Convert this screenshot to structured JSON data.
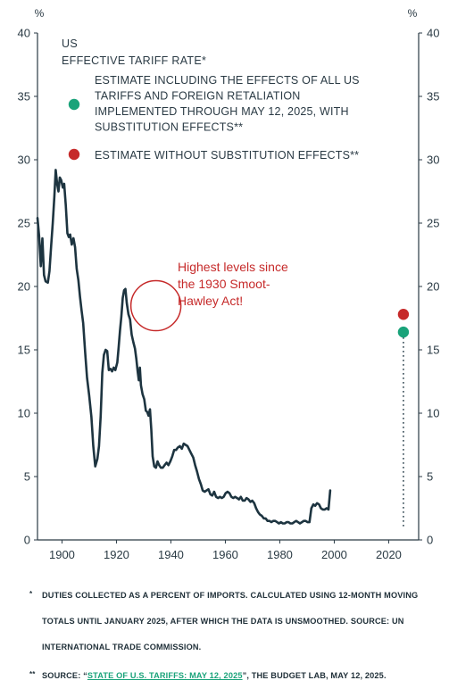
{
  "chart_data": {
    "type": "line",
    "title": "US\nEFFECTIVE TARIFF RATE*",
    "title_lines": [
      "US",
      "EFFECTIVE TARIFF RATE*"
    ],
    "y_unit_label": "%",
    "xlim": [
      1891,
      2031
    ],
    "ylim": [
      0,
      40
    ],
    "x_ticks": [
      "1900",
      "1920",
      "1940",
      "1960",
      "1980",
      "2000",
      "2020"
    ],
    "x_tick_values": [
      1900,
      1920,
      1940,
      1960,
      1980,
      2000,
      2020
    ],
    "y_ticks": [
      "0",
      "5",
      "10",
      "15",
      "20",
      "25",
      "30",
      "35",
      "40"
    ],
    "y_tick_values": [
      0,
      5,
      10,
      15,
      20,
      25,
      30,
      35,
      40
    ],
    "legend": [
      {
        "label_lines": [
          "ESTIMATE INCLUDING THE EFFECTS OF ALL US",
          "TARIFFS AND FOREIGN RETALIATION",
          "IMPLEMENTED THROUGH MAY 12, 2025, WITH",
          "SUBSTITUTION EFFECTS**"
        ],
        "color": "#1aa37a"
      },
      {
        "label_lines": [
          "ESTIMATE WITHOUT SUBSTITUTION EFFECTS**"
        ],
        "color": "#c62a2a"
      }
    ],
    "annotation": {
      "text_lines": [
        "Highest levels since",
        "the 1930 Smoot-",
        "Hawley Act!"
      ],
      "x": 1933.5,
      "y": 18.2,
      "color": "#c62a2a"
    },
    "series": [
      {
        "color": "#1d3440",
        "points": [
          [
            1891,
            25.4
          ],
          [
            1891.6,
            24.0
          ],
          [
            1892.2,
            21.6
          ],
          [
            1892.8,
            23.8
          ],
          [
            1893.4,
            20.9
          ],
          [
            1894.0,
            20.4
          ],
          [
            1894.8,
            20.3
          ],
          [
            1895.4,
            21.2
          ],
          [
            1896.0,
            23.2
          ],
          [
            1896.6,
            25.0
          ],
          [
            1897.2,
            27.1
          ],
          [
            1897.7,
            29.2
          ],
          [
            1898.2,
            28.1
          ],
          [
            1898.7,
            27.5
          ],
          [
            1899.2,
            28.6
          ],
          [
            1899.7,
            28.4
          ],
          [
            1900.3,
            27.8
          ],
          [
            1900.8,
            28.1
          ],
          [
            1901.4,
            26.4
          ],
          [
            1902.0,
            24.2
          ],
          [
            1902.5,
            23.9
          ],
          [
            1903.0,
            24.1
          ],
          [
            1903.6,
            23.3
          ],
          [
            1904.2,
            23.8
          ],
          [
            1904.8,
            23.1
          ],
          [
            1905.4,
            21.4
          ],
          [
            1906.0,
            20.5
          ],
          [
            1906.6,
            19.2
          ],
          [
            1907.2,
            18.1
          ],
          [
            1907.8,
            17.1
          ],
          [
            1908.5,
            14.8
          ],
          [
            1909.2,
            12.8
          ],
          [
            1910.0,
            11.4
          ],
          [
            1910.8,
            9.7
          ],
          [
            1911.5,
            7.4
          ],
          [
            1912.2,
            5.8
          ],
          [
            1913.0,
            6.4
          ],
          [
            1913.6,
            7.4
          ],
          [
            1914.2,
            9.8
          ],
          [
            1914.8,
            13.2
          ],
          [
            1915.4,
            14.6
          ],
          [
            1916.0,
            15.0
          ],
          [
            1916.6,
            14.9
          ],
          [
            1917.2,
            13.4
          ],
          [
            1917.8,
            13.5
          ],
          [
            1918.4,
            13.3
          ],
          [
            1919.0,
            13.6
          ],
          [
            1919.6,
            13.4
          ],
          [
            1920.3,
            14.0
          ],
          [
            1920.8,
            15.2
          ],
          [
            1921.3,
            16.5
          ],
          [
            1921.8,
            17.6
          ],
          [
            1922.3,
            19.1
          ],
          [
            1922.8,
            19.7
          ],
          [
            1923.3,
            19.8
          ],
          [
            1923.8,
            18.7
          ],
          [
            1924.4,
            17.8
          ],
          [
            1925.0,
            17.4
          ],
          [
            1925.6,
            16.2
          ],
          [
            1926.2,
            15.6
          ],
          [
            1926.8,
            15.1
          ],
          [
            1927.3,
            14.3
          ],
          [
            1927.8,
            13.3
          ],
          [
            1928.2,
            12.6
          ],
          [
            1928.6,
            13.6
          ],
          [
            1929.0,
            12.2
          ],
          [
            1929.6,
            11.5
          ],
          [
            1930.2,
            11.1
          ],
          [
            1930.8,
            10.2
          ],
          [
            1931.3,
            10.1
          ],
          [
            1931.8,
            9.8
          ],
          [
            1932.3,
            10.3
          ],
          [
            1932.8,
            8.7
          ],
          [
            1933.3,
            6.6
          ],
          [
            1933.9,
            5.8
          ],
          [
            1934.5,
            5.7
          ],
          [
            1935.1,
            6.2
          ],
          [
            1935.7,
            5.9
          ],
          [
            1936.3,
            5.7
          ],
          [
            1937.0,
            5.7
          ],
          [
            1937.7,
            5.9
          ],
          [
            1938.4,
            6.1
          ],
          [
            1939.1,
            5.9
          ],
          [
            1939.8,
            6.2
          ],
          [
            1940.5,
            6.6
          ],
          [
            1941.2,
            7.1
          ],
          [
            1941.9,
            7.1
          ],
          [
            1942.6,
            7.3
          ],
          [
            1943.3,
            7.4
          ],
          [
            1944.0,
            7.2
          ],
          [
            1944.7,
            7.6
          ],
          [
            1945.4,
            7.5
          ],
          [
            1946.1,
            7.4
          ],
          [
            1946.8,
            7.1
          ],
          [
            1947.5,
            6.8
          ],
          [
            1948.2,
            6.5
          ],
          [
            1948.9,
            5.9
          ],
          [
            1949.6,
            5.4
          ],
          [
            1950.3,
            4.8
          ],
          [
            1951.0,
            4.4
          ],
          [
            1951.7,
            3.9
          ],
          [
            1952.4,
            3.8
          ],
          [
            1953.1,
            3.9
          ],
          [
            1953.8,
            4.0
          ],
          [
            1954.5,
            3.6
          ],
          [
            1955.2,
            3.5
          ],
          [
            1955.9,
            3.8
          ],
          [
            1956.6,
            3.4
          ],
          [
            1957.3,
            3.3
          ],
          [
            1958.0,
            3.4
          ],
          [
            1958.7,
            3.3
          ],
          [
            1959.4,
            3.4
          ],
          [
            1960.1,
            3.7
          ],
          [
            1960.8,
            3.8
          ],
          [
            1961.5,
            3.7
          ],
          [
            1962.2,
            3.4
          ],
          [
            1962.9,
            3.3
          ],
          [
            1963.6,
            3.4
          ],
          [
            1964.3,
            3.3
          ],
          [
            1965.0,
            3.2
          ],
          [
            1965.7,
            3.4
          ],
          [
            1966.4,
            3.1
          ],
          [
            1967.1,
            3.1
          ],
          [
            1967.8,
            3.3
          ],
          [
            1968.5,
            3.2
          ],
          [
            1969.2,
            3.0
          ],
          [
            1969.9,
            3.1
          ],
          [
            1970.6,
            2.9
          ],
          [
            1971.3,
            2.5
          ],
          [
            1972.0,
            2.2
          ],
          [
            1972.7,
            2.0
          ],
          [
            1973.4,
            1.9
          ],
          [
            1974.1,
            1.7
          ],
          [
            1974.8,
            1.7
          ],
          [
            1975.5,
            1.5
          ],
          [
            1976.2,
            1.5
          ],
          [
            1976.9,
            1.4
          ],
          [
            1977.6,
            1.5
          ],
          [
            1978.3,
            1.5
          ],
          [
            1979.0,
            1.4
          ],
          [
            1979.7,
            1.3
          ],
          [
            1980.4,
            1.4
          ],
          [
            1981.1,
            1.3
          ],
          [
            1981.8,
            1.3
          ],
          [
            1982.5,
            1.4
          ],
          [
            1983.2,
            1.4
          ],
          [
            1983.9,
            1.3
          ],
          [
            1984.6,
            1.3
          ],
          [
            1985.3,
            1.4
          ],
          [
            1986.0,
            1.5
          ],
          [
            1986.7,
            1.4
          ],
          [
            1987.4,
            1.3
          ],
          [
            1988.1,
            1.4
          ],
          [
            1988.8,
            1.5
          ],
          [
            1989.5,
            1.5
          ],
          [
            1990.2,
            1.4
          ],
          [
            1990.9,
            1.4
          ],
          [
            1991.6,
            2.5
          ],
          [
            1992.3,
            2.8
          ],
          [
            1993.0,
            2.7
          ],
          [
            1993.7,
            2.9
          ],
          [
            1994.4,
            2.8
          ],
          [
            1995.1,
            2.5
          ],
          [
            1995.8,
            2.4
          ],
          [
            1996.5,
            2.4
          ],
          [
            1997.2,
            2.5
          ],
          [
            1997.9,
            2.4
          ],
          [
            1998.5,
            3.9
          ]
        ]
      }
    ],
    "markers": [
      {
        "x": 2025.4,
        "y": 16.4,
        "color": "#1aa37a"
      },
      {
        "x": 2025.4,
        "y": 17.8,
        "color": "#c62a2a"
      }
    ]
  },
  "footnotes": {
    "note1_star": "*",
    "note1_lines": [
      "DUTIES COLLECTED AS A PERCENT OF IMPORTS. CALCULATED USING 12-MONTH MOVING",
      "TOTALS UNTIL JANUARY 2025, AFTER WHICH THE DATA IS UNSMOOTHED. SOURCE: UN",
      "INTERNATIONAL TRADE COMMISSION."
    ],
    "note2_star": "**",
    "note2_prefix": "SOURCE: “",
    "note2_link": "STATE OF U.S. TARIFFS: MAY 12, 2025",
    "note2_suffix": "”, THE BUDGET LAB, MAY 12, 2025."
  }
}
